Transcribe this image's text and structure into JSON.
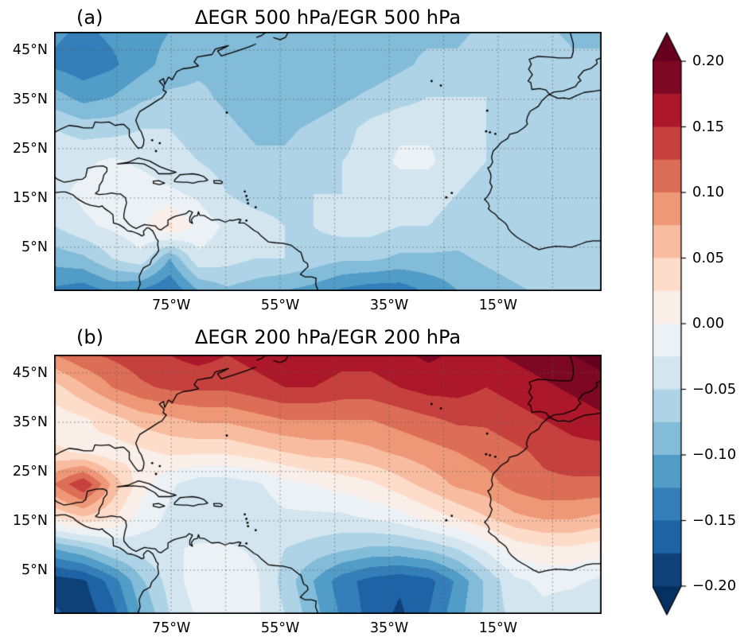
{
  "panels": [
    {
      "prefix": "(a)",
      "title": "ΔEGR 500 hPa/EGR 500 hPa"
    },
    {
      "prefix": "(b)",
      "title": "ΔEGR 200 hPa/EGR 200 hPa"
    }
  ],
  "axes": {
    "lat_ticks": [
      "45°N",
      "35°N",
      "25°N",
      "15°N",
      "5°N"
    ],
    "lon_ticks": [
      "75°W",
      "55°W",
      "35°W",
      "15°W"
    ]
  },
  "colorbar": {
    "ticks": [
      "0.20",
      "0.15",
      "0.10",
      "0.05",
      "0.00",
      "−0.05",
      "−0.10",
      "−0.15",
      "−0.20"
    ]
  },
  "colormap_anchors": [
    "#053061",
    "#2166ac",
    "#4393c3",
    "#92c5de",
    "#d1e5f0",
    "#f7f7f7",
    "#fddbc7",
    "#f4a582",
    "#d6604d",
    "#b2182b",
    "#67001f"
  ],
  "chart_data": [
    {
      "type": "heatmap",
      "panel_label": "(a)",
      "title": "ΔEGR 500 hPa/EGR 500 hPa",
      "lon_range": [
        -96.5,
        4
      ],
      "lat_range": [
        -3.9,
        48.7
      ],
      "lon_ticks": [
        -75,
        -55,
        -35,
        -15
      ],
      "lat_ticks": [
        45,
        35,
        25,
        15,
        5
      ],
      "levels_min": -0.2,
      "levels_max": 0.2,
      "levels_step": 0.025,
      "colormap": "RdBu_r",
      "row_order": "north-to-south",
      "values": [
        [
          -0.12,
          -0.13,
          -0.12,
          -0.11,
          -0.1,
          -0.09,
          -0.08,
          -0.08,
          -0.09,
          -0.09,
          -0.09,
          -0.08,
          -0.08,
          -0.08,
          -0.08,
          -0.07,
          -0.07,
          -0.07,
          -0.08,
          -0.08
        ],
        [
          -0.13,
          -0.14,
          -0.13,
          -0.11,
          -0.09,
          -0.08,
          -0.08,
          -0.09,
          -0.1,
          -0.1,
          -0.09,
          -0.09,
          -0.08,
          -0.07,
          -0.07,
          -0.06,
          -0.06,
          -0.06,
          -0.07,
          -0.07
        ],
        [
          -0.09,
          -0.11,
          -0.1,
          -0.08,
          -0.07,
          -0.07,
          -0.08,
          -0.09,
          -0.1,
          -0.09,
          -0.08,
          -0.07,
          -0.06,
          -0.05,
          -0.05,
          -0.05,
          -0.06,
          -0.06,
          -0.06,
          -0.06
        ],
        [
          -0.05,
          -0.06,
          -0.06,
          -0.05,
          -0.05,
          -0.06,
          -0.07,
          -0.08,
          -0.08,
          -0.07,
          -0.06,
          -0.04,
          -0.03,
          -0.03,
          -0.03,
          -0.05,
          -0.06,
          -0.06,
          -0.07,
          -0.06
        ],
        [
          -0.03,
          -0.03,
          -0.02,
          -0.03,
          -0.04,
          -0.05,
          -0.06,
          -0.07,
          -0.07,
          -0.06,
          -0.05,
          -0.04,
          -0.02,
          -0.02,
          -0.04,
          -0.05,
          -0.06,
          -0.07,
          -0.07,
          -0.07
        ],
        [
          -0.03,
          -0.02,
          -0.01,
          -0.01,
          -0.02,
          -0.03,
          -0.05,
          -0.06,
          -0.06,
          -0.05,
          -0.05,
          -0.04,
          -0.04,
          -0.04,
          -0.05,
          -0.06,
          -0.06,
          -0.06,
          -0.07,
          -0.07
        ],
        [
          -0.05,
          -0.03,
          -0.02,
          -0.01,
          0.03,
          -0.01,
          -0.03,
          -0.04,
          -0.05,
          -0.05,
          -0.04,
          -0.04,
          -0.05,
          -0.05,
          -0.06,
          -0.06,
          -0.06,
          -0.05,
          -0.06,
          -0.06
        ],
        [
          -0.09,
          -0.08,
          -0.05,
          -0.03,
          -0.1,
          -0.03,
          -0.04,
          -0.05,
          -0.05,
          -0.06,
          -0.07,
          -0.07,
          -0.08,
          -0.08,
          -0.08,
          -0.07,
          -0.06,
          -0.05,
          -0.05,
          -0.05
        ],
        [
          -0.13,
          -0.14,
          -0.12,
          -0.13,
          -0.15,
          -0.1,
          -0.08,
          -0.09,
          -0.1,
          -0.11,
          -0.13,
          -0.14,
          -0.14,
          -0.12,
          -0.1,
          -0.09,
          -0.08,
          -0.07,
          -0.07,
          -0.07
        ]
      ]
    },
    {
      "type": "heatmap",
      "panel_label": "(b)",
      "title": "ΔEGR 200 hPa/EGR 200 hPa",
      "lon_range": [
        -96.5,
        4
      ],
      "lat_range": [
        -3.9,
        48.7
      ],
      "lon_ticks": [
        -75,
        -55,
        -35,
        -15
      ],
      "lat_ticks": [
        45,
        35,
        25,
        15,
        5
      ],
      "levels_min": -0.2,
      "levels_max": 0.2,
      "levels_step": 0.025,
      "colormap": "RdBu_r",
      "row_order": "north-to-south",
      "values": [
        [
          0.1,
          0.12,
          0.13,
          0.14,
          0.15,
          0.16,
          0.15,
          0.16,
          0.17,
          0.17,
          0.16,
          0.16,
          0.17,
          0.18,
          0.17,
          0.17,
          0.18,
          0.19,
          0.2,
          0.21
        ],
        [
          0.04,
          0.07,
          0.1,
          0.12,
          0.13,
          0.13,
          0.13,
          0.14,
          0.15,
          0.15,
          0.14,
          0.14,
          0.15,
          0.16,
          0.16,
          0.15,
          0.16,
          0.17,
          0.18,
          0.19
        ],
        [
          0.01,
          0.02,
          0.04,
          0.06,
          0.07,
          0.08,
          0.08,
          0.09,
          0.1,
          0.1,
          0.1,
          0.1,
          0.11,
          0.12,
          0.13,
          0.13,
          0.14,
          0.15,
          0.16,
          0.17
        ],
        [
          0.03,
          0.02,
          0.01,
          0.02,
          0.03,
          0.03,
          0.03,
          0.04,
          0.05,
          0.06,
          0.06,
          0.07,
          0.08,
          0.09,
          0.1,
          0.11,
          0.12,
          0.13,
          0.14,
          0.14
        ],
        [
          0.1,
          0.15,
          0.07,
          0.01,
          -0.02,
          -0.04,
          -0.04,
          -0.03,
          -0.01,
          0.0,
          0.01,
          0.02,
          0.04,
          0.06,
          0.08,
          0.09,
          0.11,
          0.12,
          0.12,
          0.12
        ],
        [
          0.03,
          0.05,
          0.03,
          -0.01,
          -0.03,
          -0.05,
          -0.05,
          -0.04,
          -0.03,
          -0.03,
          -0.03,
          -0.02,
          -0.01,
          0.01,
          0.03,
          0.05,
          0.07,
          0.08,
          0.08,
          0.07
        ],
        [
          -0.1,
          -0.08,
          -0.05,
          -0.04,
          -0.03,
          -0.02,
          -0.02,
          -0.03,
          -0.05,
          -0.06,
          -0.07,
          -0.08,
          -0.08,
          -0.07,
          -0.05,
          -0.02,
          0.01,
          0.02,
          0.02,
          0.01
        ],
        [
          -0.19,
          -0.18,
          -0.14,
          -0.08,
          -0.04,
          -0.01,
          0.0,
          -0.02,
          -0.06,
          -0.1,
          -0.14,
          -0.16,
          -0.17,
          -0.16,
          -0.12,
          -0.07,
          -0.03,
          -0.02,
          -0.02,
          -0.03
        ],
        [
          -0.17,
          -0.19,
          -0.16,
          -0.1,
          -0.05,
          -0.02,
          -0.01,
          -0.02,
          -0.05,
          -0.09,
          -0.13,
          -0.16,
          -0.18,
          -0.15,
          -0.11,
          -0.07,
          -0.04,
          -0.03,
          -0.04,
          -0.05
        ]
      ]
    }
  ]
}
